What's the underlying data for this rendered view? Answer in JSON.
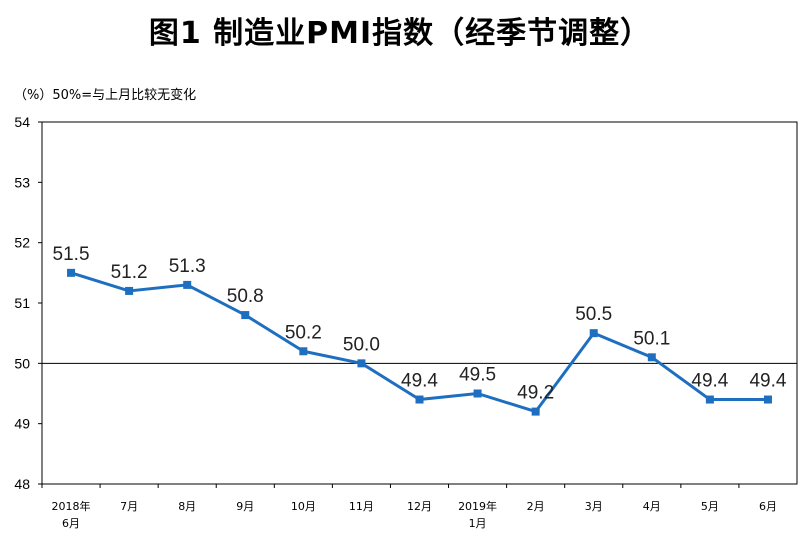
{
  "chart_data": {
    "type": "line",
    "title": "图1 制造业PMI指数（经季节调整）",
    "unit_note": "（%）50%=与上月比较无变化",
    "categories": [
      [
        "2018年",
        "6月"
      ],
      [
        "7月"
      ],
      [
        "8月"
      ],
      [
        "9月"
      ],
      [
        "10月"
      ],
      [
        "11月"
      ],
      [
        "12月"
      ],
      [
        "2019年",
        "1月"
      ],
      [
        "2月"
      ],
      [
        "3月"
      ],
      [
        "4月"
      ],
      [
        "5月"
      ],
      [
        "6月"
      ]
    ],
    "series": [
      {
        "name": "制造业PMI指数",
        "color": "#1f6fc1",
        "values": [
          51.5,
          51.2,
          51.3,
          50.8,
          50.2,
          50.0,
          49.4,
          49.5,
          49.2,
          50.5,
          50.1,
          49.4,
          49.4
        ]
      }
    ],
    "data_labels": [
      "51.5",
      "51.2",
      "51.3",
      "50.8",
      "50.2",
      "50.0",
      "49.4",
      "49.5",
      "49.2",
      "50.5",
      "50.1",
      "49.4",
      "49.4"
    ],
    "ylim": [
      48,
      54
    ],
    "yticks": [
      "48",
      "49",
      "50",
      "51",
      "52",
      "53",
      "54"
    ],
    "reference_line": 50,
    "grid": false
  }
}
